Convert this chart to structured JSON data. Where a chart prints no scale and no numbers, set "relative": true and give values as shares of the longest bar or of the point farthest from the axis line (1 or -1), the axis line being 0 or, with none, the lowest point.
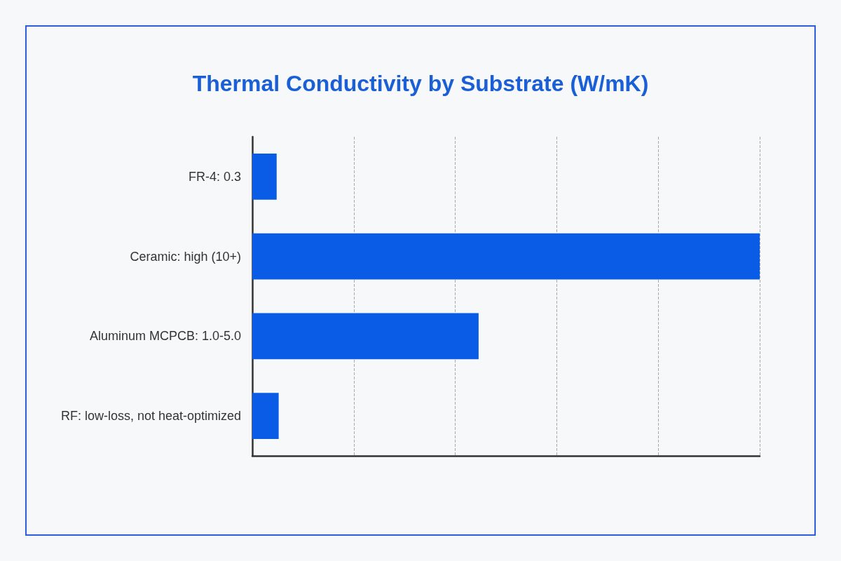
{
  "chart_data": {
    "type": "bar",
    "title": "Thermal Conductivity by Substrate (W/mK)",
    "orientation": "horizontal",
    "relative": true,
    "grid": "x",
    "categories": [
      "FR-4: 0.3",
      "Ceramic: high (10+)",
      "Aluminum MCPCB: 1.0-5.0",
      "RF: low-loss, not heat-optimized"
    ],
    "values": [
      0.048,
      1,
      0.446,
      0.052
    ],
    "color": "#0a5ce6"
  }
}
